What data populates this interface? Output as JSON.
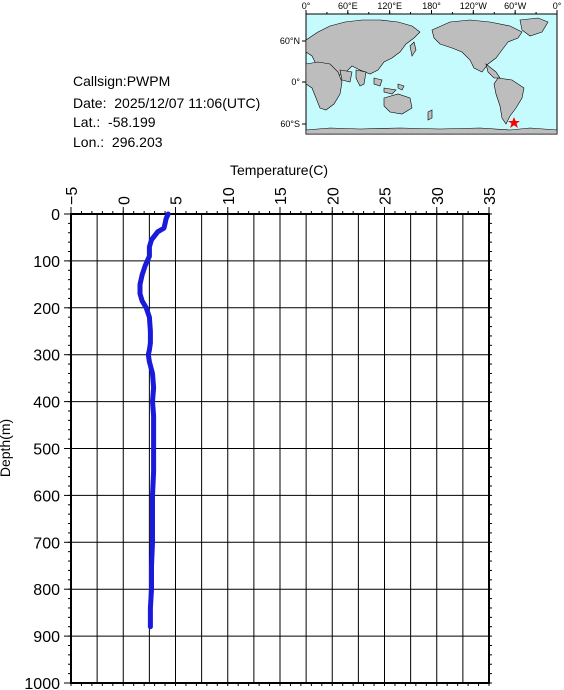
{
  "station": {
    "callsign_label": "Callsign:",
    "callsign": "PWPM",
    "date_label": "Date:",
    "date": "2025/12/07 11:06(UTC)",
    "lat_label": "Lat.:",
    "lat": "-58.199",
    "lon_label": "Lon.:",
    "lon": "296.203"
  },
  "map": {
    "lon_labels": [
      "0°",
      "60°E",
      "120°E",
      "180°",
      "120°W",
      "60°W",
      "0°"
    ],
    "lat_labels": [
      "60°N",
      "0°",
      "60°S"
    ],
    "ocean_color": "#c6fbfe",
    "land_color": "#bdbdbd",
    "marker": "red-star",
    "marker_color": "#ff0000"
  },
  "chart_data": {
    "type": "line",
    "xlabel": "Temperature(C)",
    "ylabel": "Depth(m)",
    "xlim": [
      -5,
      35
    ],
    "ylim": [
      0,
      1000
    ],
    "y_inverted": true,
    "x_axis_position": "top",
    "x_ticks": [
      "-5",
      "0",
      "5",
      "10",
      "15",
      "20",
      "25",
      "30",
      "35"
    ],
    "y_ticks": [
      "0",
      "100",
      "200",
      "300",
      "400",
      "500",
      "600",
      "700",
      "800",
      "900",
      "1000"
    ],
    "grid": true,
    "line_color": "#1a1adc",
    "series": [
      {
        "temperature": [
          4.3,
          4.1,
          4.0,
          3.9,
          3.3,
          2.7,
          2.5,
          2.5,
          2.1,
          1.8,
          1.6,
          1.6,
          1.8,
          2.2,
          2.5,
          2.6,
          2.6,
          2.5,
          2.4,
          2.5,
          2.8,
          2.9,
          2.8,
          2.9,
          2.9,
          2.9,
          2.9,
          2.8,
          2.8,
          2.8,
          2.7,
          2.7,
          2.6,
          2.6,
          2.6
        ],
        "depth": [
          0,
          10,
          20,
          30,
          38,
          55,
          70,
          90,
          110,
          130,
          150,
          170,
          185,
          200,
          220,
          250,
          275,
          290,
          300,
          315,
          340,
          370,
          400,
          430,
          460,
          500,
          550,
          600,
          650,
          700,
          750,
          800,
          840,
          860,
          880
        ]
      }
    ]
  }
}
